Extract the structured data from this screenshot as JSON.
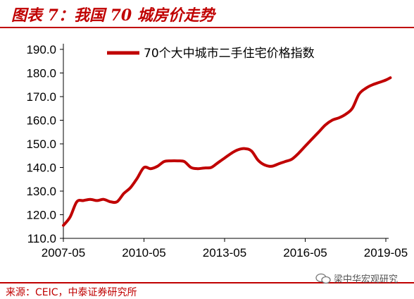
{
  "header": {
    "title": "图表 7：我国 70 城房价走势"
  },
  "footer": {
    "source": "来源：CEIC，中泰证券研究所",
    "watermark": "梁中华宏观研究"
  },
  "colors": {
    "accent": "#c00000",
    "series": "#c00000"
  },
  "chart_data": {
    "type": "line",
    "title": "",
    "xlabel": "",
    "ylabel": "",
    "ylim": [
      110,
      190
    ],
    "yticks": [
      "110.0",
      "120.0",
      "130.0",
      "140.0",
      "150.0",
      "160.0",
      "170.0",
      "180.0",
      "190.0"
    ],
    "xticks": [
      "2007-05",
      "2010-05",
      "2013-05",
      "2016-05",
      "2019-05"
    ],
    "legend_position": "top",
    "grid": false,
    "series": [
      {
        "name": "70个大中城市二手住宅价格指数",
        "x": [
          "2007-05",
          "2007-08",
          "2007-11",
          "2008-02",
          "2008-05",
          "2008-08",
          "2008-11",
          "2009-02",
          "2009-05",
          "2009-08",
          "2009-11",
          "2010-02",
          "2010-05",
          "2010-08",
          "2010-11",
          "2011-02",
          "2011-05",
          "2011-08",
          "2011-11",
          "2012-02",
          "2012-05",
          "2012-08",
          "2012-11",
          "2013-02",
          "2013-05",
          "2013-08",
          "2013-11",
          "2014-02",
          "2014-05",
          "2014-08",
          "2014-11",
          "2015-02",
          "2015-05",
          "2015-08",
          "2015-11",
          "2016-02",
          "2016-05",
          "2016-08",
          "2016-11",
          "2017-02",
          "2017-05",
          "2017-08",
          "2017-11",
          "2018-02",
          "2018-05",
          "2018-08",
          "2018-11",
          "2019-02",
          "2019-05",
          "2019-07"
        ],
        "values": [
          115.5,
          119,
          125.5,
          126,
          126.5,
          126,
          126.5,
          125.5,
          125.5,
          129,
          131.5,
          135.5,
          140,
          139.5,
          140.5,
          142.5,
          142.8,
          142.8,
          142.5,
          140,
          139.5,
          139.8,
          140,
          142,
          144,
          146,
          147.5,
          148,
          147,
          143,
          141,
          140.5,
          141.5,
          142.5,
          143.5,
          146,
          149,
          152,
          155,
          158,
          160,
          161,
          162.5,
          165,
          171,
          173.5,
          175,
          176,
          177,
          178
        ]
      }
    ]
  }
}
